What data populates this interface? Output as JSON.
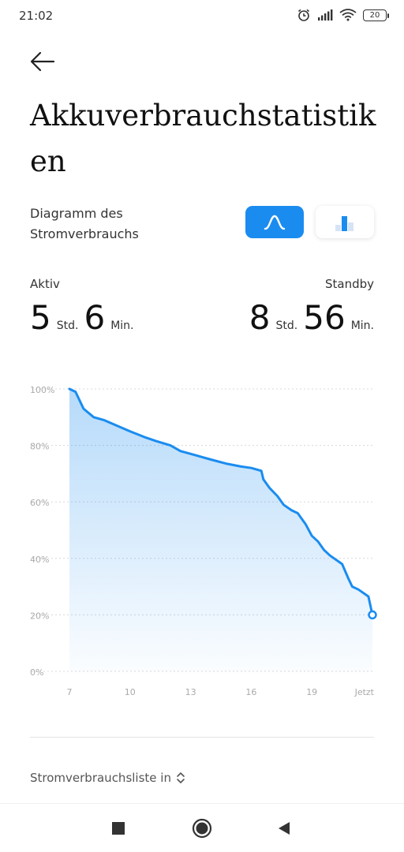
{
  "status_bar": {
    "time": "21:02",
    "battery": "20",
    "icons": [
      "alarm-icon",
      "signal-icon",
      "wifi-icon",
      "battery-icon"
    ]
  },
  "header": {
    "back_icon": "arrow-left-icon",
    "title": "Akkuverbrauchstatistiken"
  },
  "diagram_selector": {
    "label": "Diagramm des Stromverbrauchs",
    "options": [
      {
        "icon": "line-chart-icon",
        "selected": true
      },
      {
        "icon": "bar-chart-icon",
        "selected": false
      }
    ],
    "accent": "#1a8cf0"
  },
  "stats": {
    "active": {
      "label": "Aktiv",
      "hours": "5",
      "hours_unit": "Std.",
      "minutes": "6",
      "minutes_unit": "Min."
    },
    "standby": {
      "label": "Standby",
      "hours": "8",
      "hours_unit": "Std.",
      "minutes": "56",
      "minutes_unit": "Min."
    }
  },
  "chart_data": {
    "type": "area",
    "x_ticks": [
      "7",
      "10",
      "13",
      "16",
      "19",
      "Jetzt"
    ],
    "y_ticks": [
      "100%",
      "80%",
      "60%",
      "40%",
      "20%",
      "0%"
    ],
    "ylim": [
      0,
      100
    ],
    "xlim": [
      7,
      22
    ],
    "grid": true,
    "line_color": "#1a8cf0",
    "series": [
      {
        "x": [
          7.0,
          7.3,
          7.7,
          8.2,
          8.7,
          9.5,
          10.0,
          10.7,
          11.3,
          12.0,
          12.5,
          13.0,
          14.0,
          14.8,
          15.5,
          16.0,
          16.5,
          16.6,
          16.9,
          17.3,
          17.6,
          18.0,
          18.3,
          18.7,
          19.0,
          19.3,
          19.6,
          19.9,
          20.5,
          20.8,
          21.0,
          21.3,
          21.8,
          22.0
        ],
        "y": [
          100,
          99,
          93,
          90,
          89,
          86.5,
          85,
          83,
          81.5,
          80,
          78,
          77,
          75,
          73.5,
          72.5,
          72,
          71,
          68,
          65,
          62,
          59,
          57,
          56,
          52,
          48,
          46,
          43,
          41,
          38,
          33,
          30,
          29,
          26.5,
          20
        ]
      }
    ]
  },
  "list_toggle": {
    "label": "Stromverbrauchsliste in",
    "icon": "chevron-up-down-icon"
  },
  "navbar": {
    "icons": [
      "recents-square-icon",
      "home-circle-icon",
      "back-triangle-icon"
    ]
  }
}
